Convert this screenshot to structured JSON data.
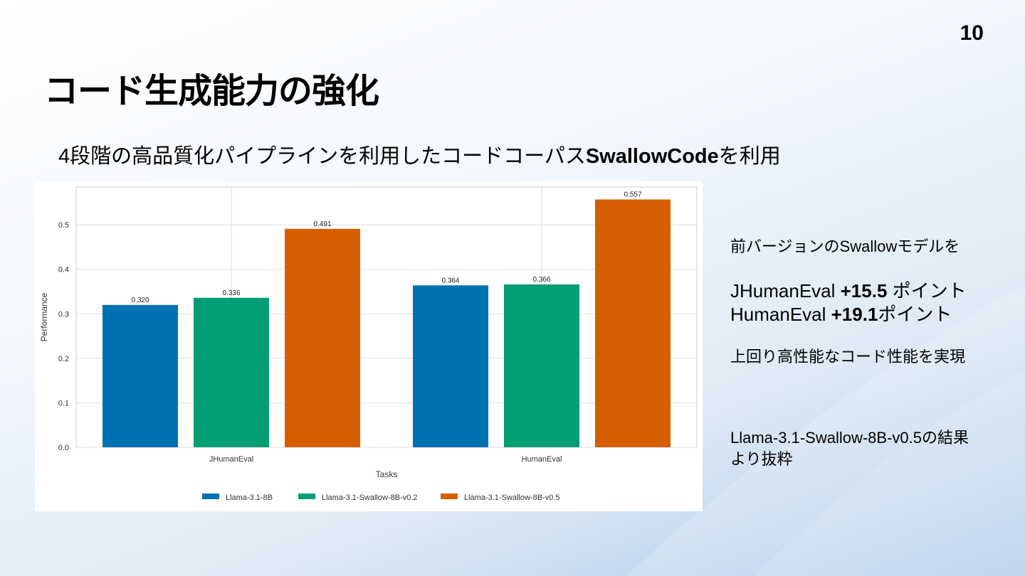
{
  "slide": {
    "page_number": "10",
    "title": "コード生成能力の強化",
    "subtitle_prefix": "4段階の高品質化パイプラインを利用したコードコーパス",
    "subtitle_bold": "SwallowCode",
    "subtitle_suffix": "を利用"
  },
  "side": {
    "line1": "前バージョンのSwallowモデルを",
    "jhuman_label": "JHumanEval ",
    "jhuman_value": "+15.5",
    "jhuman_suffix": " ポイント",
    "human_label": "HumanEval ",
    "human_value": "+19.1",
    "human_suffix": "ポイント",
    "line4": "上回り高性能なコード性能を実現",
    "source_line1": "Llama-3.1-Swallow-8B-v0.5の結果",
    "source_line2": "より抜粋"
  },
  "chart_data": {
    "type": "bar",
    "categories": [
      "JHumanEval",
      "HumanEval"
    ],
    "series": [
      {
        "name": "Llama-3.1-8B",
        "color": "#0072b2",
        "values": [
          0.32,
          0.364
        ],
        "labels": [
          "0.320",
          "0.364"
        ]
      },
      {
        "name": "Llama-3.1-Swallow-8B-v0.2",
        "color": "#009e73",
        "values": [
          0.336,
          0.366
        ],
        "labels": [
          "0.336",
          "0.366"
        ]
      },
      {
        "name": "Llama-3.1-Swallow-8B-v0.5",
        "color": "#d55e00",
        "values": [
          0.491,
          0.557
        ],
        "labels": [
          "0.491",
          "0.557"
        ]
      }
    ],
    "xlabel": "Tasks",
    "ylabel": "Performance",
    "ylim": [
      0,
      0.585
    ],
    "yticks": [
      0.0,
      0.1,
      0.2,
      0.3,
      0.4,
      0.5
    ],
    "ytick_labels": [
      "0.0",
      "0.1",
      "0.2",
      "0.3",
      "0.4",
      "0.5"
    ],
    "grid": true,
    "legend_position": "bottom"
  }
}
